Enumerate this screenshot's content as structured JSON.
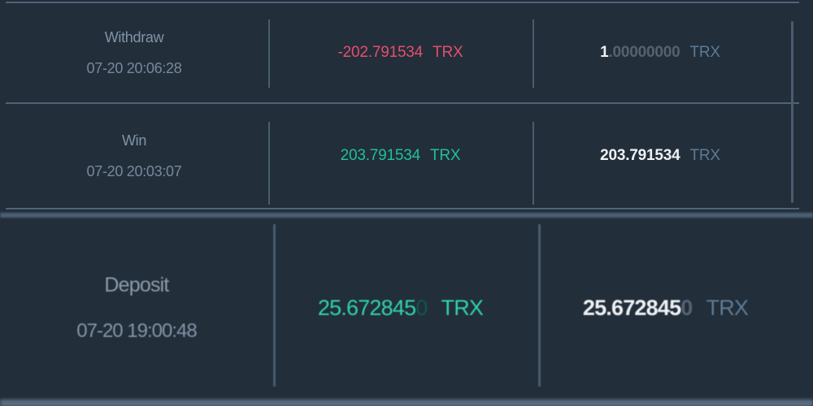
{
  "colors": {
    "background": "#222e3a",
    "separator": "#506377",
    "separator_thick": "#4d6073",
    "separator_bottom": "#5b6e81",
    "divider": "#4a5d6f",
    "label": "#8094a8",
    "date": "#76899c",
    "label_zoom": "#8b9cab",
    "date_zoom": "#8295a7",
    "negative": "#e64e6d",
    "positive": "#20c09c",
    "positive_bright": "#2fd3ac",
    "dim_green": "#10584b",
    "amount_white": "#eef1f4",
    "dim_gray": "#566270",
    "currency_slate": "#5d7b94"
  },
  "rows": [
    {
      "type_label": "Withdraw",
      "datetime": "07-20 20:06:28",
      "amount": {
        "value": "-202.791534",
        "dim": "",
        "currency": "TRX"
      },
      "balance": {
        "value": "1",
        "dim": ".00000000",
        "currency": "TRX"
      }
    },
    {
      "type_label": "Win",
      "datetime": "07-20 20:03:07",
      "amount": {
        "value": "203.791534",
        "dim": "",
        "currency": "TRX"
      },
      "balance": {
        "value": "203.791534",
        "dim": "",
        "currency": "TRX"
      }
    },
    {
      "type_label": "Deposit",
      "datetime": "07-20 19:00:48",
      "amount": {
        "value": "25.672845",
        "dim": "0",
        "currency": "TRX"
      },
      "balance": {
        "value": "25.672845",
        "dim": "0",
        "currency": "TRX"
      }
    }
  ]
}
